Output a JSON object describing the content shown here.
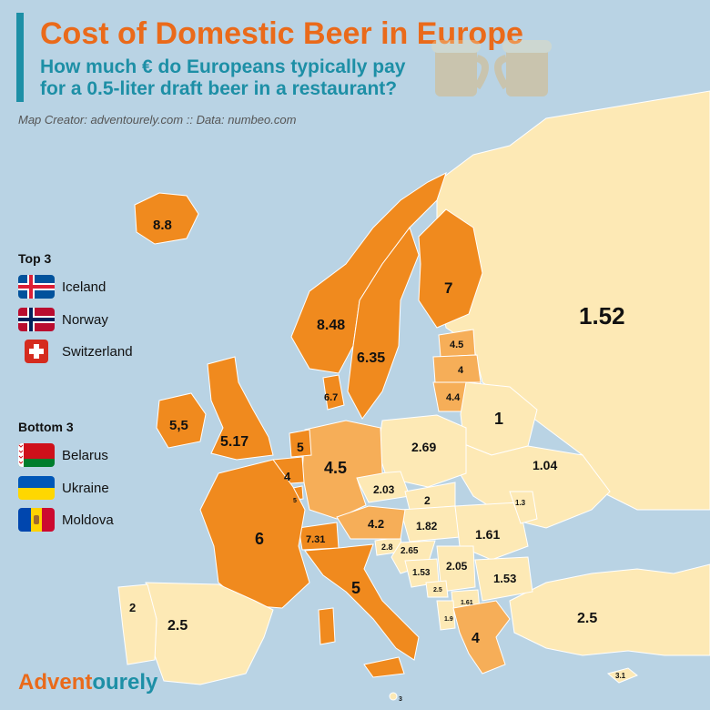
{
  "header": {
    "title": "Cost of Domestic Beer in Europe",
    "subtitle_line1": "How much € do Europeans typically pay",
    "subtitle_line2": "for a 0.5-liter draft beer in a restaurant?",
    "credit": "Map Creator: adventourely.com :: Data: numbeo.com"
  },
  "legend": {
    "top_heading": "Top 3",
    "top": [
      {
        "name": "Iceland",
        "flag": "iceland-flag-icon"
      },
      {
        "name": "Norway",
        "flag": "norway-flag-icon"
      },
      {
        "name": "Switzerland",
        "flag": "switzerland-flag-icon"
      }
    ],
    "bottom_heading": "Bottom 3",
    "bottom": [
      {
        "name": "Belarus",
        "flag": "belarus-flag-icon"
      },
      {
        "name": "Ukraine",
        "flag": "ukraine-flag-icon"
      },
      {
        "name": "Moldova",
        "flag": "moldova-flag-icon"
      }
    ]
  },
  "brand": {
    "part1": "Advent",
    "part2": "ourely"
  },
  "colors": {
    "sea": "#b9d3e4",
    "high": "#f08a1e",
    "mid": "#f6ae58",
    "low": "#fde9b5",
    "title": "#ea6a1a",
    "subtitle": "#1d8fa6"
  },
  "map_values": {
    "iceland": "8.8",
    "norway": "8.48",
    "sweden": "6.35",
    "finland": "7",
    "denmark": "6.7",
    "ireland": "5,5",
    "uk": "5.17",
    "netherlands": "5",
    "belgium": "4",
    "luxembourg": "5",
    "germany": "4.5",
    "france": "6",
    "switzerland": "7.31",
    "austria": "4.2",
    "italy": "5",
    "spain": "2.5",
    "portugal": "2",
    "russia": "1.52",
    "estonia": "4.5",
    "latvia": "4",
    "lithuania": "4.4",
    "belarus": "1",
    "poland": "2.69",
    "ukraine": "1.04",
    "czechia": "2.03",
    "slovakia": "2",
    "hungary": "1.82",
    "romania": "1.61",
    "moldova": "1.3",
    "slovenia": "2.8",
    "croatia": "2.65",
    "bosnia": "1.53",
    "serbia": "2.05",
    "montenegro": "2.5",
    "kosovo": "1.61",
    "albania": "1.9",
    "bulgaria": "1.53",
    "greece": "4",
    "turkey": "2.5",
    "cyprus": "3.1",
    "malta": "3"
  }
}
